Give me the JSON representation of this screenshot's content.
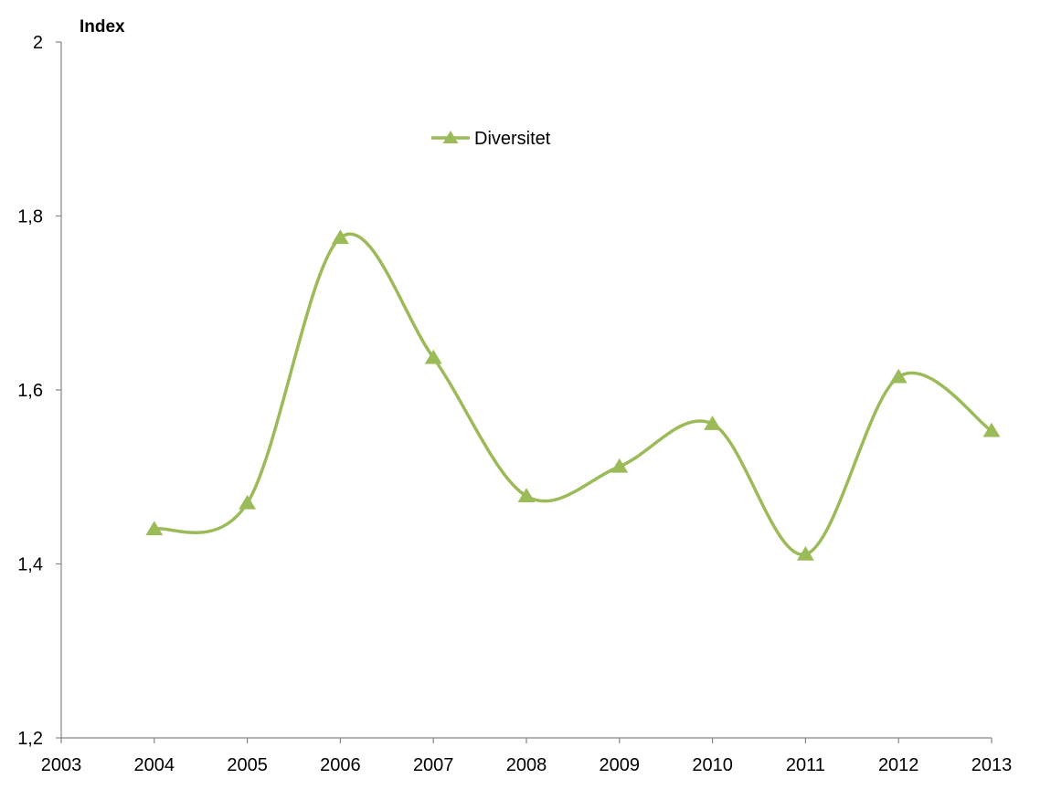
{
  "chart_data": {
    "type": "line",
    "ylabel": "Index",
    "x_ticks": [
      "2003",
      "2004",
      "2005",
      "2006",
      "2007",
      "2008",
      "2009",
      "2010",
      "2011",
      "2012",
      "2013"
    ],
    "y_ticks": [
      "1,2",
      "1,4",
      "1,6",
      "1,8",
      "2"
    ],
    "xlim": [
      2003,
      2013
    ],
    "ylim": [
      1.2,
      2.0
    ],
    "grid": false,
    "smooth": true,
    "legend_position": "top-center",
    "series": [
      {
        "name": "Diversitet",
        "color": "#9BBB59",
        "marker": "triangle",
        "x": [
          2004,
          2005,
          2006,
          2007,
          2008,
          2009,
          2010,
          2011,
          2012,
          2013
        ],
        "y": [
          1.44,
          1.47,
          1.775,
          1.637,
          1.478,
          1.512,
          1.561,
          1.411,
          1.615,
          1.553
        ]
      }
    ]
  }
}
